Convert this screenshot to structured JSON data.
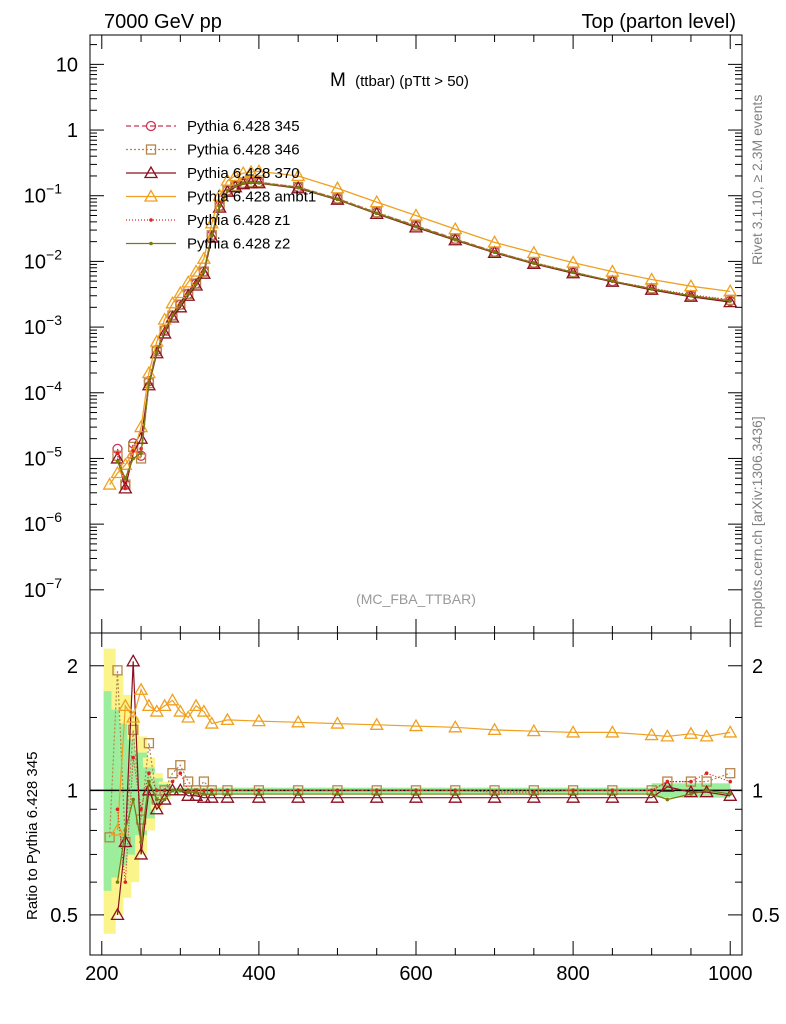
{
  "header": {
    "left": "7000 GeV pp",
    "right": "Top (parton level)"
  },
  "side": {
    "rivet": "Rivet 3.1.10, ≥ 2.3M events",
    "mcplots": "mcplots.cern.ch [arXiv:1306.3436]"
  },
  "chart_data": [
    {
      "type": "line",
      "title": "M",
      "title_sub": "(ttbar) (pTtt > 50)",
      "watermark": "(MC_FBA_TTBAR)",
      "xlim": [
        185,
        1015
      ],
      "ylim": [
        2.2e-08,
        28
      ],
      "yscale": "log",
      "yticks": [
        {
          "v": 1e-07,
          "m": "10",
          "e": "−7"
        },
        {
          "v": 1e-06,
          "m": "10",
          "e": "−6"
        },
        {
          "v": 1e-05,
          "m": "10",
          "e": "−5"
        },
        {
          "v": 0.0001,
          "m": "10",
          "e": "−4"
        },
        {
          "v": 0.001,
          "m": "10",
          "e": "−3"
        },
        {
          "v": 0.01,
          "m": "10",
          "e": "−2"
        },
        {
          "v": 0.1,
          "m": "10",
          "e": "−1"
        },
        {
          "v": 1,
          "m": "1",
          "e": ""
        },
        {
          "v": 10,
          "m": "10",
          "e": ""
        }
      ],
      "legend_position": "top-left",
      "x": [
        210,
        220,
        230,
        240,
        250,
        260,
        270,
        280,
        290,
        300,
        310,
        320,
        330,
        340,
        350,
        360,
        370,
        380,
        390,
        400,
        450,
        500,
        550,
        600,
        650,
        700,
        750,
        800,
        850,
        900,
        950,
        1000
      ],
      "series": [
        {
          "name": "Pythia 6.428 345",
          "color": "#cc3355",
          "marker": "circle-open",
          "dash": "5,3",
          "values": [
            null,
            1.4e-05,
            4e-06,
            1.7e-05,
            1.1e-05,
            0.00015,
            0.00045,
            0.0009,
            0.0015,
            0.0022,
            0.0032,
            0.0046,
            0.007,
            0.025,
            0.07,
            0.12,
            0.14,
            0.155,
            0.16,
            0.16,
            0.135,
            0.09,
            0.055,
            0.035,
            0.022,
            0.014,
            0.0095,
            0.0068,
            0.005,
            0.0038,
            0.003,
            0.0025
          ]
        },
        {
          "name": "Pythia 6.428 346",
          "color": "#b5864a",
          "marker": "square-open",
          "dash": "2,2",
          "values": [
            null,
            1.1e-05,
            4e-06,
            1.5e-05,
            1e-05,
            0.00014,
            0.00043,
            0.00088,
            0.0015,
            0.0022,
            0.0032,
            0.0046,
            0.007,
            0.025,
            0.07,
            0.12,
            0.14,
            0.157,
            0.162,
            0.161,
            0.136,
            0.091,
            0.056,
            0.035,
            0.022,
            0.014,
            0.0096,
            0.0069,
            0.005,
            0.0039,
            0.003,
            0.0026
          ]
        },
        {
          "name": "Pythia 6.428 370",
          "color": "#8b1020",
          "marker": "triangle-open",
          "dash": "",
          "values": [
            null,
            1e-05,
            3.5e-06,
            1.2e-05,
            2e-05,
            0.00013,
            0.0004,
            0.0008,
            0.0014,
            0.002,
            0.003,
            0.0043,
            0.0065,
            0.023,
            0.066,
            0.115,
            0.135,
            0.15,
            0.155,
            0.155,
            0.13,
            0.087,
            0.053,
            0.033,
            0.021,
            0.0135,
            0.0092,
            0.0066,
            0.0049,
            0.0037,
            0.0029,
            0.0024
          ]
        },
        {
          "name": "Pythia 6.428 ambt1",
          "color": "#f0a020",
          "marker": "triangle-open",
          "dash": "",
          "values": [
            4e-06,
            6e-06,
            8e-06,
            1.2e-05,
            3e-05,
            0.0002,
            0.0006,
            0.0013,
            0.0023,
            0.0033,
            0.0048,
            0.007,
            0.011,
            0.038,
            0.1,
            0.17,
            0.2,
            0.22,
            0.23,
            0.235,
            0.2,
            0.13,
            0.08,
            0.05,
            0.031,
            0.0195,
            0.0135,
            0.0096,
            0.007,
            0.0053,
            0.0042,
            0.0035
          ]
        },
        {
          "name": "Pythia 6.428 z1",
          "color": "#dd2222",
          "marker": "dot",
          "dash": "1,2",
          "values": [
            null,
            1.2e-05,
            3.5e-06,
            1.3e-05,
            1.4e-05,
            0.00014,
            0.00044,
            0.0009,
            0.0015,
            0.0023,
            0.0033,
            0.0047,
            0.0072,
            0.025,
            0.07,
            0.12,
            0.14,
            0.155,
            0.16,
            0.158,
            0.134,
            0.089,
            0.054,
            0.034,
            0.0215,
            0.014,
            0.0095,
            0.0069,
            0.005,
            0.0039,
            0.0031,
            0.0026
          ]
        },
        {
          "name": "Pythia 6.428 z2",
          "color": "#7a7a10",
          "marker": "dot",
          "dash": "",
          "values": [
            null,
            9e-06,
            5e-06,
            1e-05,
            1.2e-05,
            0.00014,
            0.00042,
            0.00086,
            0.0015,
            0.0022,
            0.0032,
            0.0045,
            0.007,
            0.025,
            0.069,
            0.12,
            0.14,
            0.155,
            0.158,
            0.157,
            0.133,
            0.088,
            0.054,
            0.034,
            0.0215,
            0.0138,
            0.0094,
            0.0068,
            0.005,
            0.0038,
            0.003,
            0.0025
          ]
        }
      ]
    },
    {
      "type": "line",
      "ylabel": "Ratio to Pythia 6.428 345",
      "xlim": [
        185,
        1015
      ],
      "ylim": [
        0.4,
        2.4
      ],
      "yscale": "log",
      "yticks": [
        {
          "v": 0.5,
          "label": "0.5"
        },
        {
          "v": 1,
          "label": "1"
        },
        {
          "v": 2,
          "label": "2"
        }
      ],
      "xticks": [
        200,
        400,
        600,
        800,
        1000
      ],
      "reference": 1,
      "ratio_x": [
        210,
        220,
        230,
        240,
        250,
        260,
        270,
        280,
        290,
        300,
        310,
        320,
        330,
        340,
        360,
        400,
        450,
        500,
        550,
        600,
        650,
        700,
        750,
        800,
        850,
        900,
        920,
        950,
        970,
        1000
      ],
      "ratio_series": [
        {
          "name": "Pythia 6.428 346",
          "values": [
            0.77,
            1.95,
            0.75,
            1.4,
            0.85,
            1.3,
            0.95,
            1.0,
            1.1,
            1.15,
            1.05,
            1.0,
            1.05,
            1.0,
            1.0,
            1.0,
            1.0,
            1.0,
            1.0,
            1.0,
            1.0,
            1.0,
            1.0,
            1.0,
            1.0,
            1.0,
            1.05,
            1.05,
            1.05,
            1.1
          ]
        },
        {
          "name": "Pythia 6.428 370",
          "values": [
            null,
            0.5,
            0.75,
            2.05,
            0.7,
            1.0,
            0.9,
            0.95,
            1.0,
            1.0,
            0.97,
            0.97,
            0.96,
            0.96,
            0.96,
            0.96,
            0.96,
            0.96,
            0.96,
            0.96,
            0.96,
            0.96,
            0.96,
            0.96,
            0.96,
            0.96,
            1.02,
            0.99,
            0.99,
            0.97
          ]
        },
        {
          "name": "Pythia 6.428 ambt1",
          "values": [
            null,
            0.8,
            1.6,
            1.5,
            1.75,
            1.6,
            1.55,
            1.6,
            1.65,
            1.55,
            1.5,
            1.6,
            1.55,
            1.45,
            1.48,
            1.47,
            1.46,
            1.45,
            1.44,
            1.43,
            1.42,
            1.4,
            1.39,
            1.38,
            1.38,
            1.36,
            1.35,
            1.37,
            1.35,
            1.38
          ]
        },
        {
          "name": "Pythia 6.428 z1",
          "values": [
            null,
            0.9,
            0.6,
            1.2,
            0.9,
            1.1,
            1.0,
            1.0,
            1.05,
            1.1,
            1.0,
            1.0,
            1.0,
            1.0,
            1.0,
            1.0,
            1.0,
            1.0,
            1.0,
            1.0,
            1.0,
            0.99,
            0.99,
            1.0,
            1.0,
            1.0,
            1.05,
            1.05,
            1.1,
            1.05
          ]
        },
        {
          "name": "Pythia 6.428 z2",
          "values": [
            null,
            0.6,
            0.8,
            0.95,
            0.75,
            1.05,
            0.95,
            0.95,
            1.0,
            1.0,
            0.99,
            0.99,
            0.98,
            0.98,
            0.98,
            0.98,
            0.98,
            0.98,
            0.98,
            0.98,
            0.98,
            0.98,
            0.98,
            0.98,
            0.98,
            0.98,
            0.95,
            0.98,
            1.0,
            0.98
          ]
        }
      ]
    }
  ]
}
